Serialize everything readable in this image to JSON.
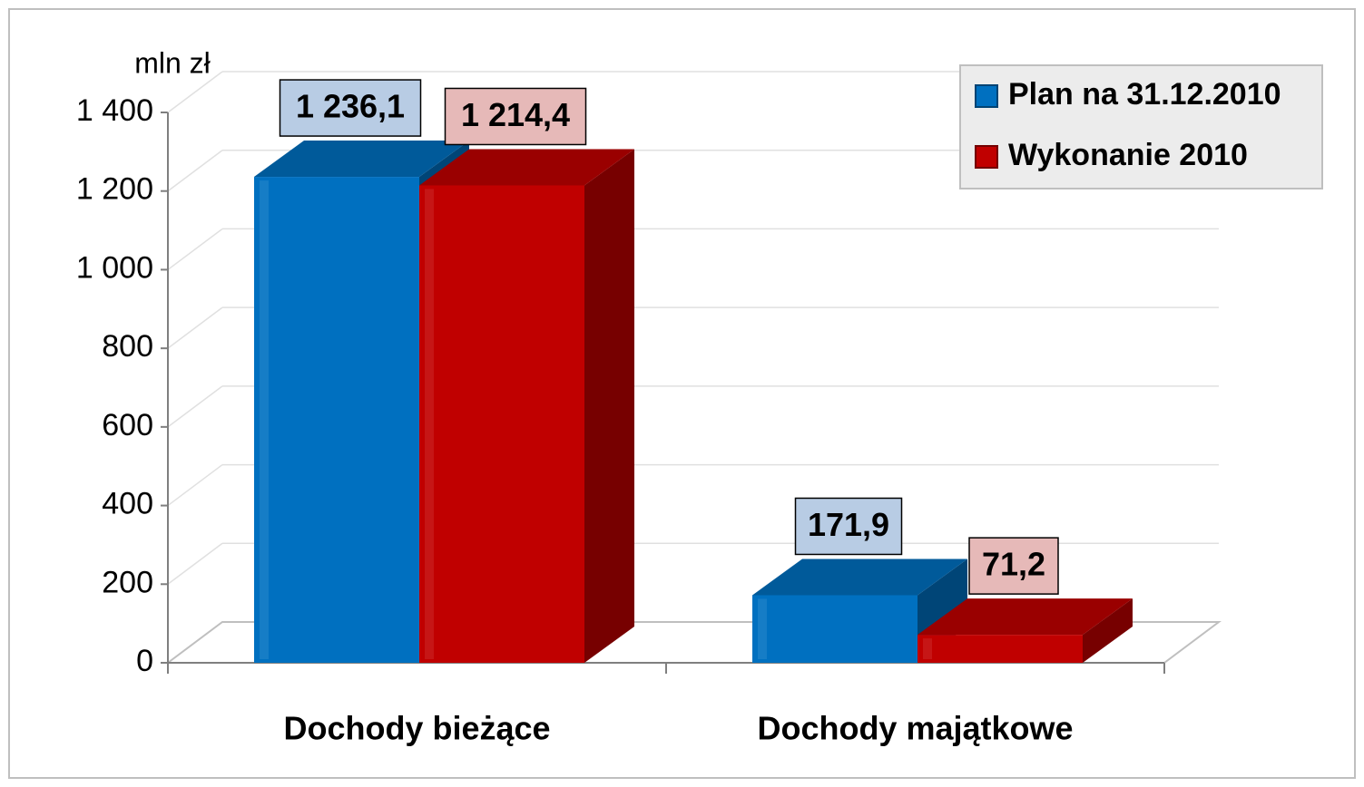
{
  "chart_data": {
    "type": "bar3d",
    "ylabel": "mln zł",
    "categories": [
      "Dochody bieżące",
      "Dochody majątkowe"
    ],
    "series": [
      {
        "name": "Plan na 31.12.2010",
        "color": "#0070c0",
        "values": [
          1236.1,
          171.9
        ],
        "value_labels": [
          "1 236,1",
          "171,9"
        ]
      },
      {
        "name": "Wykonanie 2010",
        "color": "#c00000",
        "values": [
          1214.4,
          71.2
        ],
        "value_labels": [
          "1 214,4",
          "71,2"
        ]
      }
    ],
    "ylim": [
      0,
      1400
    ],
    "yticks": [
      0,
      200,
      400,
      600,
      800,
      {
        "value": 1000,
        "label": "1 000"
      },
      {
        "value": 1200,
        "label": "1 200"
      },
      {
        "value": 1400,
        "label": "1 400"
      }
    ],
    "grid": true,
    "legend": "top-right"
  }
}
